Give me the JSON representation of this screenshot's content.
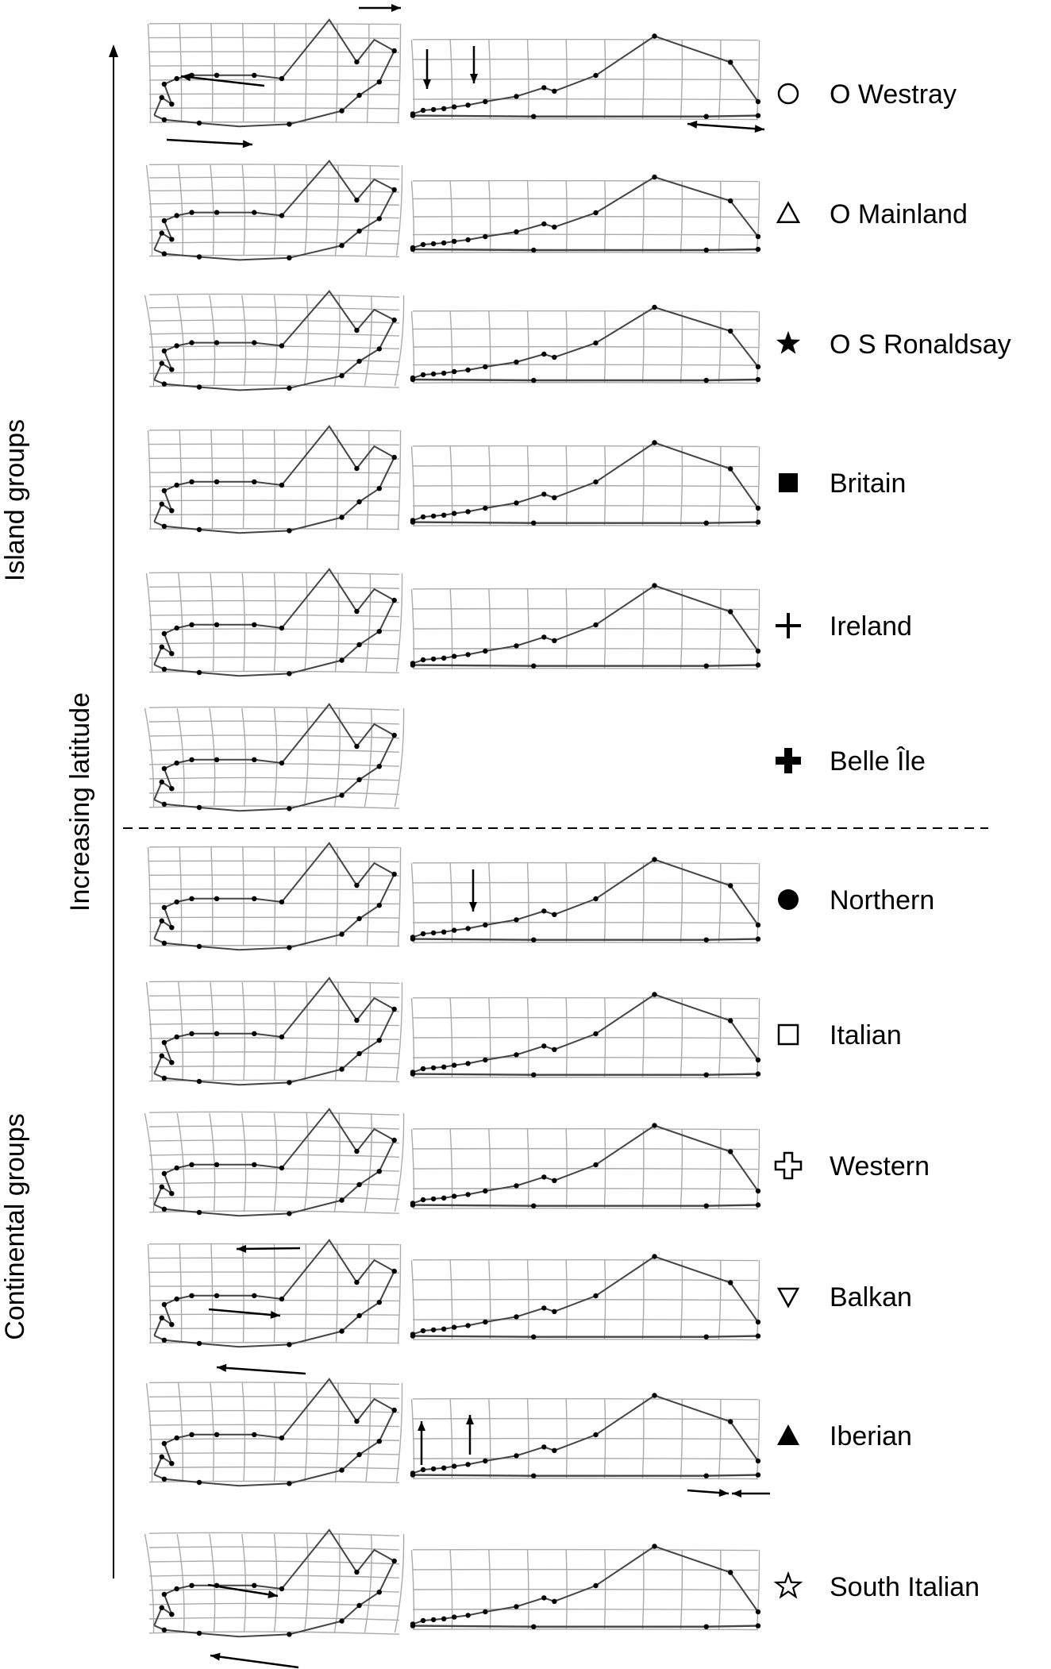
{
  "figure": {
    "axis_label": "Increasing latitude",
    "sections": [
      {
        "key": "island",
        "label": "Island groups"
      },
      {
        "key": "continental",
        "label": "Continental groups"
      }
    ],
    "rows": [
      {
        "label": "O Westray",
        "symbol": "open-circle-icon",
        "has_right": true,
        "annotations": "arrows"
      },
      {
        "label": "O Mainland",
        "symbol": "open-triangle-icon",
        "has_right": true
      },
      {
        "label": "O S Ronaldsay",
        "symbol": "filled-star-icon",
        "has_right": true
      },
      {
        "label": "Britain",
        "symbol": "filled-square-icon",
        "has_right": true
      },
      {
        "label": "Ireland",
        "symbol": "thin-cross-icon",
        "has_right": true
      },
      {
        "label": "Belle Île",
        "symbol": "bold-cross-icon",
        "has_right": false
      },
      {
        "label": "Northern",
        "symbol": "filled-circle-icon",
        "has_right": true,
        "annotations": "arrows"
      },
      {
        "label": "Italian",
        "symbol": "open-square-icon",
        "has_right": true
      },
      {
        "label": "Western",
        "symbol": "open-cross-icon",
        "has_right": true
      },
      {
        "label": "Balkan",
        "symbol": "open-down-triangle-icon",
        "has_right": true,
        "annotations": "arrows"
      },
      {
        "label": "Iberian",
        "symbol": "filled-triangle-icon",
        "has_right": true,
        "annotations": "arrows"
      },
      {
        "label": "South Italian",
        "symbol": "open-star-icon",
        "has_right": true,
        "annotations": "arrows"
      }
    ],
    "colors": {
      "grid": "#aaaaaa",
      "outline": "#444444",
      "text": "#000000"
    }
  }
}
